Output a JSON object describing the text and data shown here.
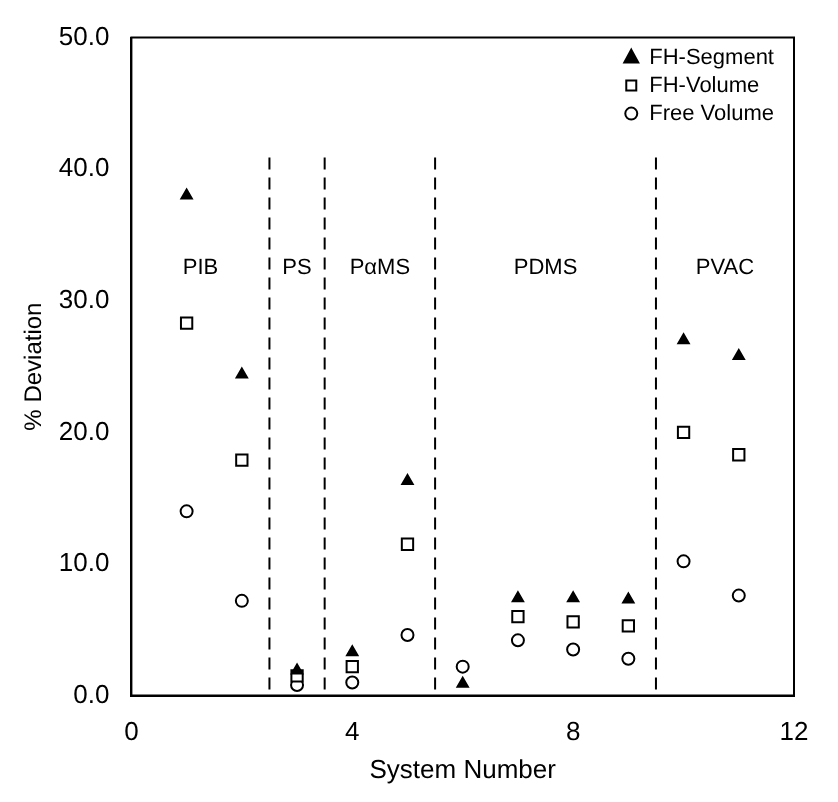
{
  "chart_data": {
    "type": "scatter",
    "xlabel": "System Number",
    "ylabel": "% Deviation",
    "x": [
      1,
      2,
      3,
      4,
      5,
      6,
      7,
      8,
      9,
      10,
      11
    ],
    "series": [
      {
        "name": "FH-Segment",
        "color": "#000000",
        "marker": "triangle",
        "values": [
          38.0,
          24.4,
          1.9,
          3.3,
          16.3,
          0.9,
          7.4,
          7.4,
          7.3,
          27.0,
          25.8
        ]
      },
      {
        "name": "FH-Volume",
        "color": "#000000",
        "marker": "square",
        "values": [
          28.3,
          17.9,
          1.5,
          2.2,
          11.5,
          null,
          6.0,
          5.6,
          5.3,
          20.0,
          18.3
        ]
      },
      {
        "name": "Free Volume",
        "color": "#000000",
        "marker": "circle",
        "values": [
          14.0,
          7.2,
          0.8,
          1.0,
          4.6,
          2.2,
          4.2,
          3.5,
          2.8,
          10.2,
          7.6
        ]
      }
    ],
    "xlim": [
      0,
      12
    ],
    "xticks": [
      0,
      4,
      8,
      12
    ],
    "ylim": [
      0,
      50
    ],
    "yticks": [
      {
        "value": 0,
        "label": "0.0"
      },
      {
        "value": 10,
        "label": "10.0"
      },
      {
        "value": 20,
        "label": "20.0"
      },
      {
        "value": 30,
        "label": "30.0"
      },
      {
        "value": 40,
        "label": "40.0"
      },
      {
        "value": 50,
        "label": "50.0"
      }
    ],
    "ref_lines": [
      {
        "axis": "x",
        "value": 2.5,
        "line_style": "dashed"
      },
      {
        "axis": "x",
        "value": 3.5,
        "line_style": "dashed"
      },
      {
        "axis": "x",
        "value": 5.5,
        "line_style": "dashed"
      },
      {
        "axis": "x",
        "value": 9.5,
        "line_style": "dashed"
      }
    ],
    "annotations": [
      "PIB",
      "PS",
      "PαMS",
      "PDMS",
      "PVAC"
    ],
    "grid": false,
    "legend": "top right"
  }
}
